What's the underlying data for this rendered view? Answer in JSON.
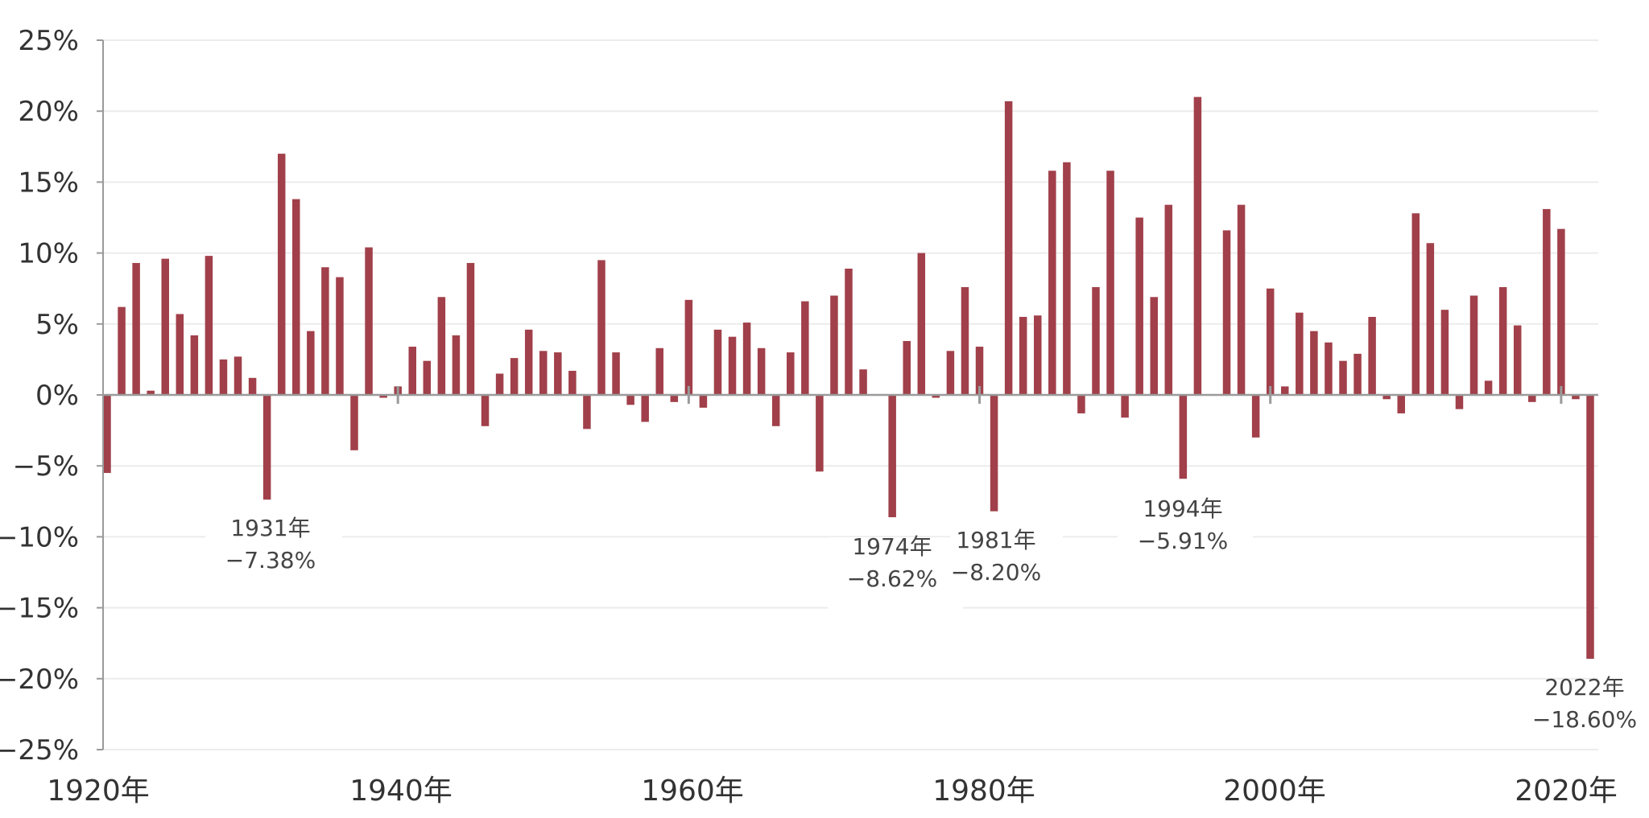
{
  "chart_data": {
    "type": "bar",
    "title": "",
    "xlabel": "",
    "ylabel": "",
    "ylim": [
      -25,
      25
    ],
    "yticks": [
      "25%",
      "20%",
      "15%",
      "10%",
      "5%",
      "0%",
      "−5%",
      "−10%",
      "−15%",
      "−20%",
      "−25%"
    ],
    "xticks": [
      "1920年",
      "1940年",
      "1960年",
      "1980年",
      "2000年",
      "2020年"
    ],
    "grid": true,
    "legend": "none",
    "bar_color": "#a1404a",
    "x": [
      1920,
      1921,
      1922,
      1923,
      1924,
      1925,
      1926,
      1927,
      1928,
      1929,
      1930,
      1931,
      1932,
      1933,
      1934,
      1935,
      1936,
      1937,
      1938,
      1939,
      1940,
      1941,
      1942,
      1943,
      1944,
      1945,
      1946,
      1947,
      1948,
      1949,
      1950,
      1951,
      1952,
      1953,
      1954,
      1955,
      1956,
      1957,
      1958,
      1959,
      1960,
      1961,
      1962,
      1963,
      1964,
      1965,
      1966,
      1967,
      1968,
      1969,
      1970,
      1971,
      1972,
      1973,
      1974,
      1975,
      1976,
      1977,
      1978,
      1979,
      1980,
      1981,
      1982,
      1983,
      1984,
      1985,
      1986,
      1987,
      1988,
      1989,
      1990,
      1991,
      1992,
      1993,
      1994,
      1995,
      1996,
      1997,
      1998,
      1999,
      2000,
      2001,
      2002,
      2003,
      2004,
      2005,
      2006,
      2007,
      2008,
      2009,
      2010,
      2011,
      2012,
      2013,
      2014,
      2015,
      2016,
      2017,
      2018,
      2019,
      2020,
      2021,
      2022
    ],
    "values": [
      -5.5,
      6.2,
      9.3,
      0.3,
      9.6,
      5.7,
      4.2,
      9.8,
      2.5,
      2.7,
      1.2,
      -7.38,
      17.0,
      13.8,
      4.5,
      9.0,
      8.3,
      -3.9,
      10.4,
      -0.2,
      0.6,
      3.4,
      2.4,
      6.9,
      4.2,
      9.3,
      -2.2,
      1.5,
      2.6,
      4.6,
      3.1,
      3.0,
      1.7,
      -2.4,
      9.5,
      3.0,
      -0.7,
      -1.9,
      3.3,
      -0.5,
      6.7,
      -0.9,
      4.6,
      4.1,
      5.1,
      3.3,
      -2.2,
      3.0,
      6.6,
      -5.4,
      7.0,
      8.9,
      1.8,
      0.0,
      -8.62,
      3.8,
      10.0,
      -0.2,
      3.1,
      7.6,
      3.4,
      -8.2,
      20.7,
      5.5,
      5.6,
      15.8,
      16.4,
      -1.3,
      7.6,
      15.8,
      -1.6,
      12.5,
      6.9,
      13.4,
      -5.91,
      21.0,
      0.0,
      11.6,
      13.4,
      -3.0,
      7.5,
      0.6,
      5.8,
      4.5,
      3.7,
      2.4,
      2.9,
      5.5,
      -0.3,
      -1.3,
      12.8,
      10.7,
      6.0,
      -1.0,
      7.0,
      1.0,
      7.6,
      4.9,
      -0.5,
      13.1,
      11.7,
      -0.3,
      -18.6
    ],
    "annotations": [
      {
        "year_label": "1931年",
        "value_label": "−7.38%"
      },
      {
        "year_label": "1974年",
        "value_label": "−8.62%"
      },
      {
        "year_label": "1981年",
        "value_label": "−8.20%"
      },
      {
        "year_label": "1994年",
        "value_label": "−5.91%"
      },
      {
        "year_label": "2022年",
        "value_label": "−18.60%"
      }
    ]
  }
}
